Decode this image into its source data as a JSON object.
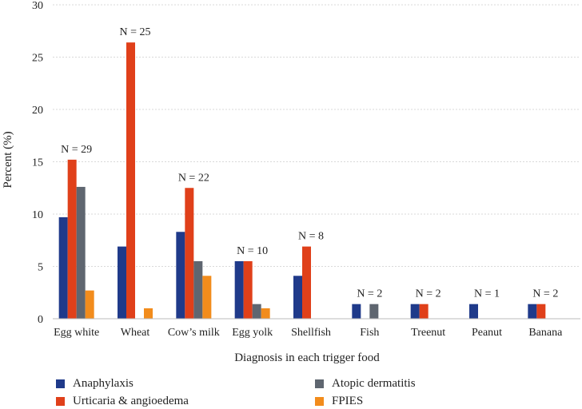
{
  "chart_data": {
    "type": "bar",
    "xlabel": "Diagnosis in each trigger food",
    "ylabel": "Percent (%)",
    "ylim": [
      0,
      30
    ],
    "yticks": [
      0,
      5,
      10,
      15,
      20,
      25,
      30
    ],
    "grid": true,
    "legend_position": "bottom",
    "categories": [
      "Egg white",
      "Wheat",
      "Cow’s milk",
      "Egg yolk",
      "Shellfish",
      "Fish",
      "Treenut",
      "Peanut",
      "Banana"
    ],
    "n_labels": [
      "N = 29",
      "N = 25",
      "N = 22",
      "N = 10",
      "N = 8",
      "N = 2",
      "N = 2",
      "N = 1",
      "N = 2"
    ],
    "series": [
      {
        "name": "Anaphylaxis",
        "color": "#1f3a8a",
        "values": [
          9.7,
          6.9,
          8.3,
          5.5,
          4.1,
          1.4,
          1.4,
          1.4,
          1.4
        ]
      },
      {
        "name": "Urticaria & angioedema",
        "color": "#e0401a",
        "values": [
          15.2,
          26.4,
          12.5,
          5.5,
          6.9,
          0,
          1.4,
          0,
          1.4
        ]
      },
      {
        "name": "Atopic dermatitis",
        "color": "#5f6670",
        "values": [
          12.6,
          0,
          5.5,
          1.4,
          0,
          1.4,
          0,
          0,
          0
        ]
      },
      {
        "name": "FPIES",
        "color": "#f28c1c",
        "values": [
          2.7,
          1.0,
          4.1,
          1.0,
          0,
          0,
          0,
          0,
          0
        ]
      }
    ]
  }
}
